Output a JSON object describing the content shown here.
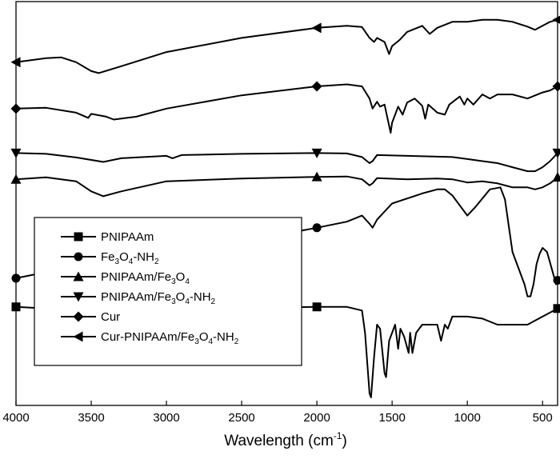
{
  "chart_data": {
    "type": "line",
    "title": "",
    "xlabel": "Wavelength (cm",
    "xlabel_sup": "-1",
    "xlabel_end": ")",
    "ylabel": "",
    "xlim": [
      4000,
      400
    ],
    "ylim": [
      0,
      1
    ],
    "x_reversed": true,
    "grid": false,
    "legend_position": "lower-left",
    "y_ticks_labeled": false,
    "x_ticks": [
      4000,
      3500,
      3000,
      2500,
      2000,
      1500,
      1000,
      500
    ],
    "series": [
      {
        "name": "PNIPAAm",
        "name_parts": [
          [
            "PNIPAAm",
            ""
          ]
        ],
        "marker": "square",
        "marker_x": [
          4000,
          2000,
          400
        ],
        "points": [
          [
            4000,
            0.244
          ],
          [
            3800,
            0.24
          ],
          [
            3600,
            0.238
          ],
          [
            3450,
            0.238
          ],
          [
            3300,
            0.24
          ],
          [
            3100,
            0.242
          ],
          [
            2970,
            0.235
          ],
          [
            2900,
            0.24
          ],
          [
            2500,
            0.242
          ],
          [
            2200,
            0.243
          ],
          [
            2000,
            0.244
          ],
          [
            1800,
            0.244
          ],
          [
            1700,
            0.235
          ],
          [
            1680,
            0.18
          ],
          [
            1650,
            0.03
          ],
          [
            1640,
            0.02
          ],
          [
            1620,
            0.12
          ],
          [
            1600,
            0.2
          ],
          [
            1580,
            0.19
          ],
          [
            1550,
            0.08
          ],
          [
            1540,
            0.07
          ],
          [
            1520,
            0.16
          ],
          [
            1480,
            0.2
          ],
          [
            1460,
            0.14
          ],
          [
            1445,
            0.19
          ],
          [
            1420,
            0.17
          ],
          [
            1390,
            0.13
          ],
          [
            1380,
            0.18
          ],
          [
            1365,
            0.13
          ],
          [
            1340,
            0.18
          ],
          [
            1300,
            0.2
          ],
          [
            1250,
            0.2
          ],
          [
            1200,
            0.2
          ],
          [
            1175,
            0.16
          ],
          [
            1150,
            0.2
          ],
          [
            1130,
            0.19
          ],
          [
            1100,
            0.22
          ],
          [
            1000,
            0.22
          ],
          [
            900,
            0.215
          ],
          [
            800,
            0.2
          ],
          [
            700,
            0.2
          ],
          [
            600,
            0.2
          ],
          [
            500,
            0.22
          ],
          [
            450,
            0.23
          ],
          [
            400,
            0.24
          ]
        ]
      },
      {
        "name": "Fe3O4-NH2",
        "name_parts": [
          [
            "Fe",
            ""
          ],
          [
            "3",
            "sub"
          ],
          [
            "O",
            ""
          ],
          [
            "4",
            "sub"
          ],
          [
            "-NH",
            ""
          ],
          [
            "2",
            "sub"
          ]
        ],
        "marker": "circle",
        "marker_x": [
          4000,
          2000,
          400
        ],
        "points": [
          [
            4000,
            0.315
          ],
          [
            3800,
            0.33
          ],
          [
            3600,
            0.345
          ],
          [
            3400,
            0.35
          ],
          [
            3000,
            0.375
          ],
          [
            2500,
            0.405
          ],
          [
            2000,
            0.44
          ],
          [
            1800,
            0.455
          ],
          [
            1700,
            0.47
          ],
          [
            1650,
            0.45
          ],
          [
            1630,
            0.44
          ],
          [
            1600,
            0.46
          ],
          [
            1500,
            0.5
          ],
          [
            1300,
            0.525
          ],
          [
            1200,
            0.535
          ],
          [
            1150,
            0.535
          ],
          [
            1100,
            0.52
          ],
          [
            1000,
            0.47
          ],
          [
            950,
            0.49
          ],
          [
            850,
            0.535
          ],
          [
            780,
            0.54
          ],
          [
            750,
            0.51
          ],
          [
            700,
            0.38
          ],
          [
            650,
            0.33
          ],
          [
            620,
            0.3
          ],
          [
            600,
            0.27
          ],
          [
            580,
            0.27
          ],
          [
            560,
            0.3
          ],
          [
            540,
            0.35
          ],
          [
            520,
            0.375
          ],
          [
            500,
            0.39
          ],
          [
            470,
            0.38
          ],
          [
            440,
            0.34
          ],
          [
            410,
            0.3
          ],
          [
            400,
            0.31
          ]
        ]
      },
      {
        "name": "PNIPAAm/Fe3O4",
        "name_parts": [
          [
            "PNIPAAm/Fe",
            ""
          ],
          [
            "3",
            "sub"
          ],
          [
            "O",
            ""
          ],
          [
            "4",
            "sub"
          ]
        ],
        "marker": "triangle-up",
        "marker_x": [
          4000,
          2000,
          400
        ],
        "points": [
          [
            4000,
            0.56
          ],
          [
            3800,
            0.565
          ],
          [
            3600,
            0.555
          ],
          [
            3500,
            0.53
          ],
          [
            3420,
            0.518
          ],
          [
            3300,
            0.53
          ],
          [
            3000,
            0.555
          ],
          [
            2500,
            0.562
          ],
          [
            2000,
            0.566
          ],
          [
            1800,
            0.567
          ],
          [
            1700,
            0.56
          ],
          [
            1650,
            0.545
          ],
          [
            1630,
            0.55
          ],
          [
            1600,
            0.563
          ],
          [
            1400,
            0.56
          ],
          [
            1200,
            0.562
          ],
          [
            1100,
            0.56
          ],
          [
            1000,
            0.552
          ],
          [
            900,
            0.555
          ],
          [
            800,
            0.55
          ],
          [
            700,
            0.54
          ],
          [
            600,
            0.54
          ],
          [
            550,
            0.535
          ],
          [
            500,
            0.54
          ],
          [
            450,
            0.55
          ],
          [
            400,
            0.565
          ]
        ]
      },
      {
        "name": "PNIPAAm/Fe3O4-NH2",
        "name_parts": [
          [
            "PNIPAAm/Fe",
            ""
          ],
          [
            "3",
            "sub"
          ],
          [
            "O",
            ""
          ],
          [
            "4",
            "sub"
          ],
          [
            "-NH",
            ""
          ],
          [
            "2",
            "sub"
          ]
        ],
        "marker": "triangle-down",
        "marker_x": [
          4000,
          2000,
          400
        ],
        "points": [
          [
            4000,
            0.625
          ],
          [
            3800,
            0.623
          ],
          [
            3600,
            0.614
          ],
          [
            3420,
            0.603
          ],
          [
            3300,
            0.612
          ],
          [
            3000,
            0.618
          ],
          [
            2960,
            0.612
          ],
          [
            2900,
            0.62
          ],
          [
            2500,
            0.623
          ],
          [
            2000,
            0.625
          ],
          [
            1800,
            0.624
          ],
          [
            1700,
            0.615
          ],
          [
            1650,
            0.6
          ],
          [
            1630,
            0.605
          ],
          [
            1600,
            0.62
          ],
          [
            1400,
            0.618
          ],
          [
            1200,
            0.616
          ],
          [
            1100,
            0.615
          ],
          [
            1000,
            0.61
          ],
          [
            900,
            0.605
          ],
          [
            800,
            0.6
          ],
          [
            700,
            0.59
          ],
          [
            600,
            0.58
          ],
          [
            550,
            0.58
          ],
          [
            500,
            0.59
          ],
          [
            450,
            0.605
          ],
          [
            400,
            0.625
          ]
        ]
      },
      {
        "name": "Cur",
        "name_parts": [
          [
            "Cur",
            ""
          ]
        ],
        "marker": "diamond",
        "marker_x": [
          4000,
          2000,
          400
        ],
        "points": [
          [
            4000,
            0.735
          ],
          [
            3800,
            0.737
          ],
          [
            3600,
            0.725
          ],
          [
            3520,
            0.712
          ],
          [
            3500,
            0.722
          ],
          [
            3400,
            0.715
          ],
          [
            3350,
            0.708
          ],
          [
            3200,
            0.715
          ],
          [
            3000,
            0.735
          ],
          [
            2500,
            0.768
          ],
          [
            2000,
            0.79
          ],
          [
            1800,
            0.795
          ],
          [
            1700,
            0.79
          ],
          [
            1650,
            0.76
          ],
          [
            1630,
            0.735
          ],
          [
            1600,
            0.752
          ],
          [
            1580,
            0.74
          ],
          [
            1550,
            0.745
          ],
          [
            1510,
            0.675
          ],
          [
            1500,
            0.7
          ],
          [
            1460,
            0.74
          ],
          [
            1430,
            0.72
          ],
          [
            1400,
            0.75
          ],
          [
            1350,
            0.76
          ],
          [
            1300,
            0.742
          ],
          [
            1280,
            0.71
          ],
          [
            1260,
            0.745
          ],
          [
            1230,
            0.735
          ],
          [
            1200,
            0.725
          ],
          [
            1150,
            0.72
          ],
          [
            1120,
            0.745
          ],
          [
            1050,
            0.765
          ],
          [
            1020,
            0.745
          ],
          [
            1000,
            0.76
          ],
          [
            960,
            0.745
          ],
          [
            900,
            0.77
          ],
          [
            850,
            0.76
          ],
          [
            800,
            0.77
          ],
          [
            700,
            0.77
          ],
          [
            600,
            0.76
          ],
          [
            500,
            0.775
          ],
          [
            450,
            0.78
          ],
          [
            400,
            0.79
          ]
        ]
      },
      {
        "name": "Cur-PNIPAAm/Fe3O4-NH2",
        "name_parts": [
          [
            "Cur-PNIPAAm/Fe",
            ""
          ],
          [
            "3",
            "sub"
          ],
          [
            "O",
            ""
          ],
          [
            "4",
            "sub"
          ],
          [
            "-NH",
            ""
          ],
          [
            "2",
            "sub"
          ]
        ],
        "marker": "triangle-left",
        "marker_x": [
          4000,
          2000,
          400
        ],
        "points": [
          [
            4000,
            0.85
          ],
          [
            3800,
            0.86
          ],
          [
            3700,
            0.862
          ],
          [
            3600,
            0.85
          ],
          [
            3500,
            0.828
          ],
          [
            3450,
            0.823
          ],
          [
            3300,
            0.84
          ],
          [
            3000,
            0.875
          ],
          [
            2500,
            0.91
          ],
          [
            2000,
            0.935
          ],
          [
            1800,
            0.94
          ],
          [
            1700,
            0.937
          ],
          [
            1650,
            0.91
          ],
          [
            1620,
            0.9
          ],
          [
            1600,
            0.91
          ],
          [
            1550,
            0.9
          ],
          [
            1520,
            0.87
          ],
          [
            1500,
            0.89
          ],
          [
            1450,
            0.905
          ],
          [
            1400,
            0.925
          ],
          [
            1300,
            0.94
          ],
          [
            1250,
            0.92
          ],
          [
            1200,
            0.935
          ],
          [
            1100,
            0.95
          ],
          [
            1000,
            0.95
          ],
          [
            900,
            0.955
          ],
          [
            800,
            0.955
          ],
          [
            700,
            0.95
          ],
          [
            600,
            0.938
          ],
          [
            550,
            0.93
          ],
          [
            500,
            0.94
          ],
          [
            450,
            0.95
          ],
          [
            400,
            0.955
          ]
        ]
      }
    ]
  }
}
